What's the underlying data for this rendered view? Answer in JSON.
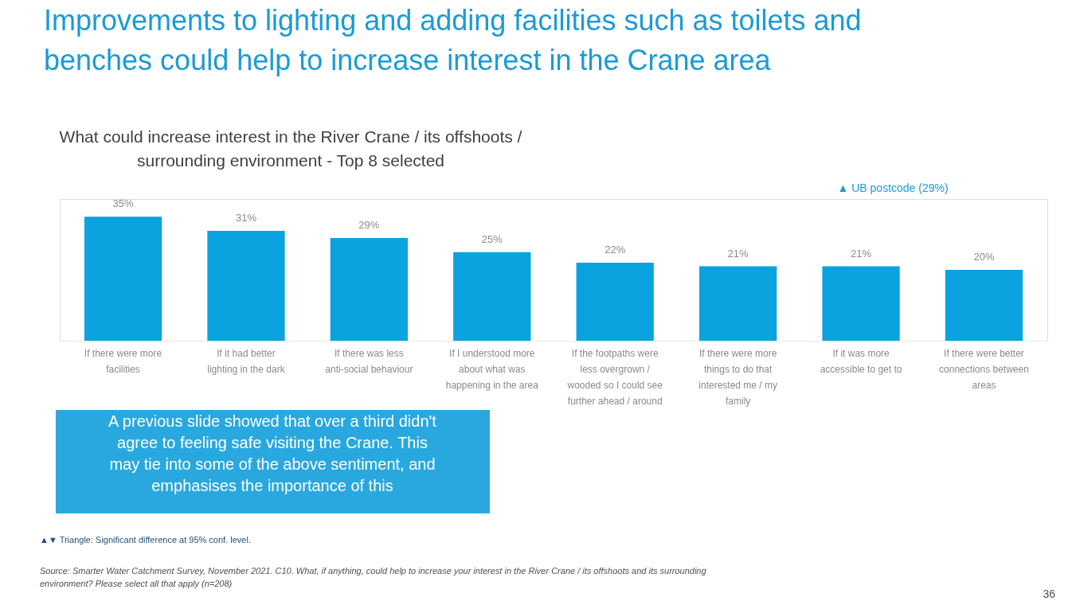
{
  "chart_data": {
    "type": "bar",
    "title": "Improvements to lighting and adding facilities such as toilets and benches could help to increase interest in the Crane area",
    "subtitle": "What could increase interest in the River Crane / its offshoots / surrounding environment - Top 8 selected",
    "categories": [
      "If there were more facilities",
      "If it had better lighting in the dark",
      "If there was less anti-social behaviour",
      "If I understood more about what was happening in the area",
      "If the footpaths were less overgrown / wooded so I could see further ahead / around",
      "If there were more things to do that interested me / my family",
      "If it was more accessible to get to",
      "If there were better connections between areas"
    ],
    "values": [
      35,
      31,
      29,
      25,
      22,
      21,
      21,
      20
    ],
    "value_labels": [
      "35%",
      "31%",
      "29%",
      "25%",
      "22%",
      "21%",
      "21%",
      "20%"
    ],
    "color": "#0aa3df",
    "annotations": [
      "▲ UB postcode (29%)",
      "A previous slide showed that over a third didn't agree to feeling safe visiting the Crane. This may tie into some of the above sentiment, and emphasises the importance of this",
      "▲▼ Triangle: Significant difference at 95% conf. level.",
      "Source: Smarter Water Catchment Survey, November 2021. C10. What, if anything, could help to increase your interest in the River Crane / its offshoots and its surrounding environment? Please select all that apply (n=208)",
      "36"
    ]
  }
}
